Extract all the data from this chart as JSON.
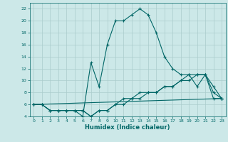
{
  "xlabel": "Humidex (Indice chaleur)",
  "background_color": "#cce8e8",
  "grid_color": "#aacccc",
  "line_color": "#006666",
  "xlim": [
    -0.5,
    23.5
  ],
  "ylim": [
    4,
    23
  ],
  "yticks": [
    4,
    6,
    8,
    10,
    12,
    14,
    16,
    18,
    20,
    22
  ],
  "xticks": [
    0,
    1,
    2,
    3,
    4,
    5,
    6,
    7,
    8,
    9,
    10,
    11,
    12,
    13,
    14,
    15,
    16,
    17,
    18,
    19,
    20,
    21,
    22,
    23
  ],
  "line1_x": [
    0,
    1,
    2,
    3,
    4,
    5,
    6,
    7,
    8,
    9,
    10,
    11,
    12,
    13,
    14,
    15,
    16,
    17,
    18,
    19,
    20,
    21,
    22,
    23
  ],
  "line1_y": [
    6,
    6,
    5,
    5,
    5,
    5,
    4,
    13,
    9,
    16,
    20,
    20,
    21,
    22,
    21,
    18,
    14,
    12,
    11,
    11,
    9,
    11,
    7,
    7
  ],
  "line2_x": [
    0,
    1,
    2,
    3,
    4,
    5,
    6,
    7,
    8,
    9,
    10,
    11,
    12,
    13,
    14,
    15,
    16,
    17,
    18,
    19,
    20,
    21,
    22,
    23
  ],
  "line2_y": [
    6,
    6,
    5,
    5,
    5,
    5,
    5,
    4,
    5,
    5,
    6,
    7,
    7,
    7,
    8,
    8,
    9,
    9,
    10,
    10,
    11,
    11,
    9,
    7
  ],
  "line3_x": [
    0,
    1,
    2,
    3,
    4,
    5,
    6,
    7,
    8,
    9,
    10,
    11,
    12,
    13,
    14,
    15,
    16,
    17,
    18,
    19,
    20,
    21,
    22,
    23
  ],
  "line3_y": [
    6,
    6,
    5,
    5,
    5,
    5,
    5,
    4,
    5,
    5,
    6,
    6,
    7,
    8,
    8,
    8,
    9,
    9,
    10,
    11,
    11,
    11,
    8,
    7
  ],
  "line4_x": [
    0,
    23
  ],
  "line4_y": [
    6,
    7
  ]
}
